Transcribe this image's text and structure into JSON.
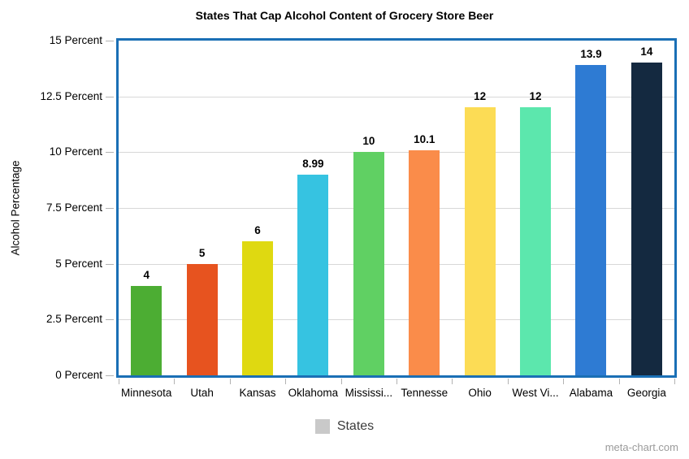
{
  "watermark": "meta-chart.com",
  "chart_data": {
    "type": "bar",
    "title": "States That Cap Alcohol Content of Grocery Store Beer",
    "ylabel": "Alcohol Percentage",
    "xlabel": "",
    "categories": [
      "Minnesota",
      "Utah",
      "Kansas",
      "Oklahoma",
      "Mississi...",
      "Tennesse",
      "Ohio",
      "West Vi...",
      "Alabama",
      "Georgia"
    ],
    "values": [
      4,
      5,
      6,
      8.99,
      10,
      10.1,
      12,
      12,
      13.9,
      14
    ],
    "value_labels": [
      "4",
      "5",
      "6",
      "8.99",
      "10",
      "10.1",
      "12",
      "12",
      "13.9",
      "14"
    ],
    "bar_colors": [
      "#4cad33",
      "#e7531f",
      "#dfd911",
      "#36c3e1",
      "#60d063",
      "#fa8c4a",
      "#fcdc55",
      "#5ce7ad",
      "#2e7bd3",
      "#142940"
    ],
    "ylim": [
      0,
      15
    ],
    "yticks": [
      {
        "value": 0,
        "label": "0 Percent"
      },
      {
        "value": 2.5,
        "label": "2.5 Percent"
      },
      {
        "value": 5,
        "label": "5 Percent"
      },
      {
        "value": 7.5,
        "label": "7.5 Percent"
      },
      {
        "value": 10,
        "label": "10 Percent"
      },
      {
        "value": 12.5,
        "label": "12.5 Percent"
      },
      {
        "value": 15,
        "label": "15 Percent"
      }
    ],
    "grid": true,
    "legend": {
      "position": "bottom",
      "label": "States",
      "swatch_color": "#c9c9c9"
    },
    "plot_border_color": "#1a6fb5",
    "gridline_color": "#d8d8d8",
    "tick_color": "#b3b3b3"
  }
}
